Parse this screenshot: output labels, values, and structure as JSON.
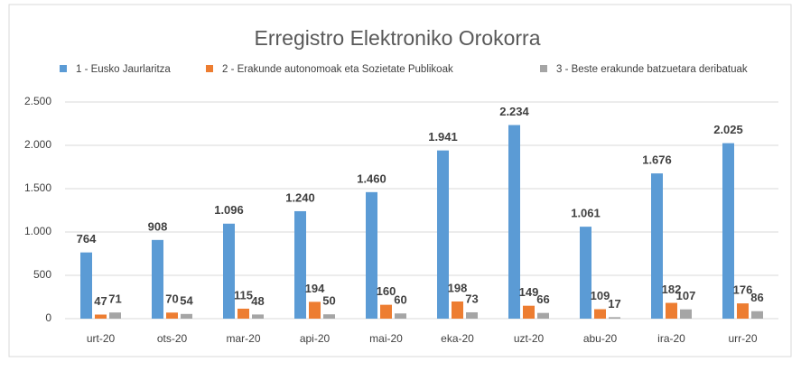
{
  "chart_data": {
    "type": "bar",
    "title": "Erregistro Elektroniko Orokorra",
    "categories": [
      "urt-20",
      "ots-20",
      "mar-20",
      "api-20",
      "mai-20",
      "eka-20",
      "uzt-20",
      "abu-20",
      "ira-20",
      "urr-20"
    ],
    "series": [
      {
        "name": "1 - Eusko Jaurlaritza",
        "color": "#5b9bd5",
        "values": [
          764,
          908,
          1096,
          1240,
          1460,
          1941,
          2234,
          1061,
          1676,
          2025
        ],
        "value_labels": [
          "764",
          "908",
          "1.096",
          "1.240",
          "1.460",
          "1.941",
          "2.234",
          "1.061",
          "1.676",
          "2.025"
        ]
      },
      {
        "name": "2 - Erakunde autonomoak eta Sozietate Publikoak",
        "color": "#ed7d31",
        "values": [
          47,
          70,
          115,
          194,
          160,
          198,
          149,
          109,
          182,
          176
        ]
      },
      {
        "name": "3 - Beste erakunde batzuetara deribatuak",
        "color": "#a5a5a5",
        "values": [
          71,
          54,
          48,
          50,
          60,
          73,
          66,
          17,
          107,
          86
        ]
      }
    ],
    "ylim": [
      0,
      2500
    ],
    "yticks": [
      0,
      500,
      {
        "value": 1000,
        "label": "1.000"
      },
      {
        "value": 1500,
        "label": "1.500"
      },
      {
        "value": 2000,
        "label": "2.000"
      },
      {
        "value": 2500,
        "label": "2.500"
      }
    ],
    "grid": true,
    "legend": "top"
  }
}
